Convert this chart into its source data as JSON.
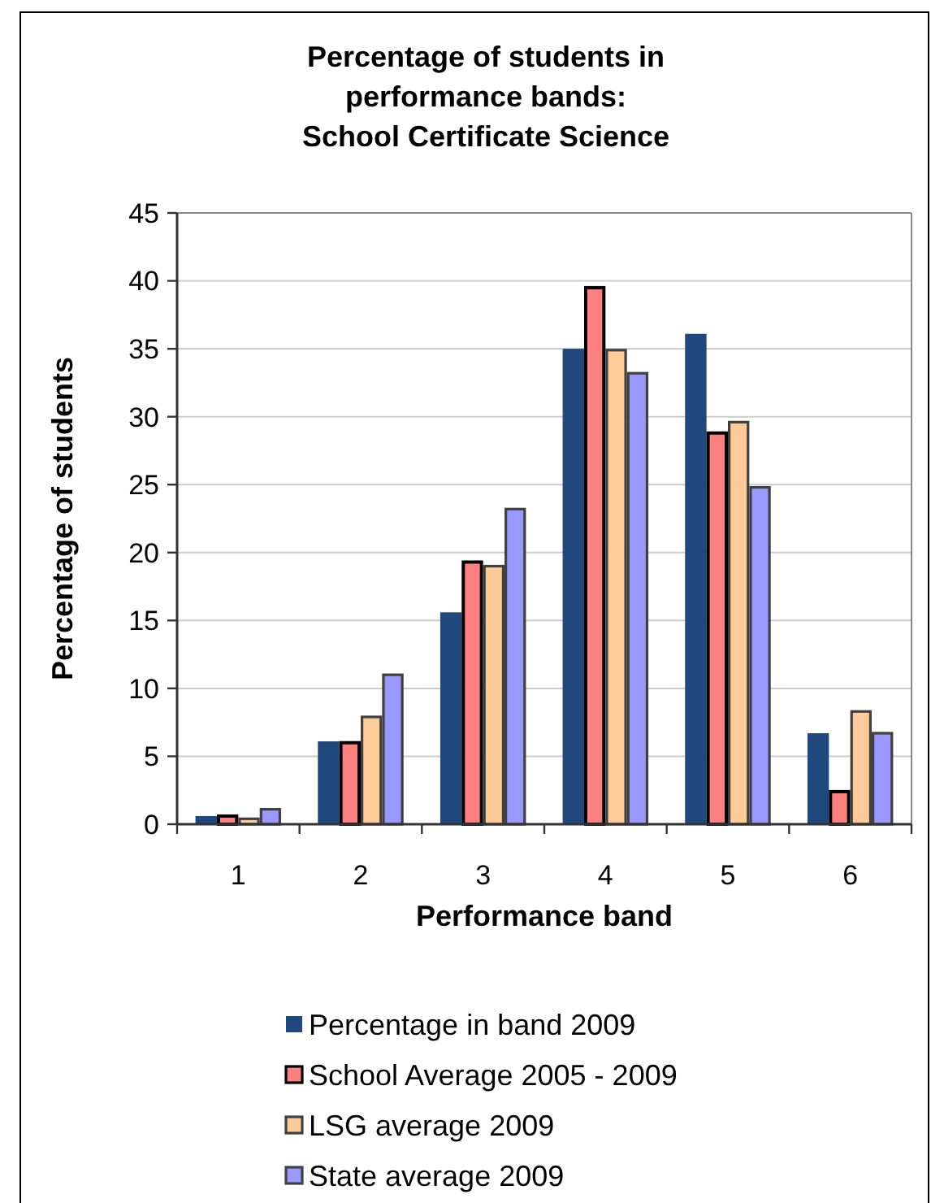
{
  "chart_data": {
    "type": "bar",
    "title": "Percentage of students in\nperformance bands:\nSchool Certificate Science",
    "categories": [
      "1",
      "2",
      "3",
      "4",
      "5",
      "6"
    ],
    "xlabel": "Performance band",
    "ylabel": "Percentage of students",
    "ylim": [
      0,
      45
    ],
    "yticks": [
      0,
      5,
      10,
      15,
      20,
      25,
      30,
      35,
      40,
      45
    ],
    "grid": "y",
    "legend": "bottom",
    "series": [
      {
        "name": "Percentage in band 2009",
        "color": "#1f497d",
        "values": [
          0.6,
          6.1,
          15.6,
          35.0,
          36.1,
          6.7
        ]
      },
      {
        "name": "School Average 2005 - 2009",
        "color": "#ff8080",
        "values": [
          0.6,
          6.0,
          19.3,
          39.5,
          28.8,
          2.4
        ]
      },
      {
        "name": "LSG average 2009",
        "color": "#ffcc99",
        "values": [
          0.4,
          7.9,
          19.0,
          34.9,
          29.6,
          8.3
        ]
      },
      {
        "name": "State average 2009",
        "color": "#9999ff",
        "values": [
          1.1,
          11.0,
          23.2,
          33.2,
          24.8,
          6.7
        ]
      }
    ]
  }
}
